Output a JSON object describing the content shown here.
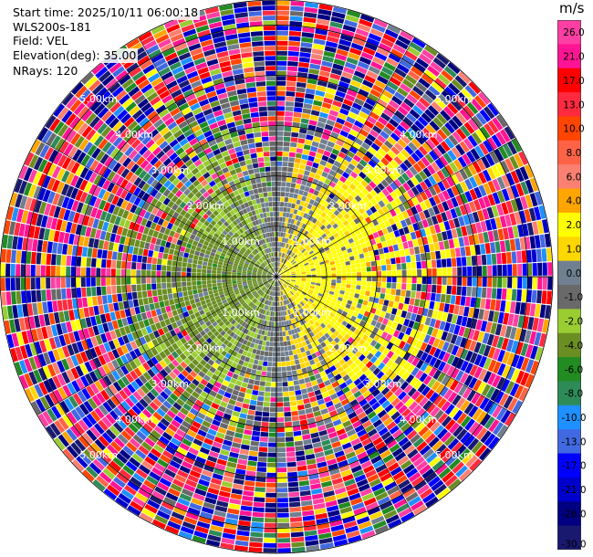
{
  "header": {
    "start_time": "Start time: 2025/10/11 06:00:18",
    "instrument": "WLS200s-181",
    "field": "Field: VEL",
    "elevation": "Elevation(deg): 35.00",
    "nrays": "NRays: 120"
  },
  "chart_data": {
    "type": "heatmap",
    "projection": "polar-ppi",
    "field": "VEL",
    "units": "m/s",
    "elevation_deg": 35.0,
    "n_rays": 120,
    "range_ring_labels": [
      "1.00km",
      "2.00km",
      "3.00km",
      "4.00km",
      "5.00km"
    ],
    "range_ring_label_km": [
      1,
      2,
      3,
      4,
      5
    ],
    "max_range_km": 5.5,
    "pattern": {
      "near_field_positive_sector": "east (yellow, ~2–6 m/s)",
      "near_field_negative_sector": "west (light green, ~-1 to -4 m/s)",
      "outer_ranges": "noisy, full color range"
    },
    "colorbar": {
      "min": -30.0,
      "max": 30.0,
      "tick_labels": [
        "26.0",
        "21.0",
        "17.0",
        "13.0",
        "10.0",
        "8.0",
        "6.0",
        "4.0",
        "2.0",
        "1.0",
        "0.0",
        "-1.0",
        "-2.0",
        "-4.0",
        "-6.0",
        "-8.0",
        "-10.0",
        "-13.0",
        "-17.0",
        "-21.0",
        "-26.0",
        "-30.0"
      ],
      "bins": [
        {
          "from": 26,
          "to": 30,
          "color": "#ff3fa3"
        },
        {
          "from": 21,
          "to": 26,
          "color": "#ff1493"
        },
        {
          "from": 17,
          "to": 21,
          "color": "#ff0000"
        },
        {
          "from": 13,
          "to": 17,
          "color": "#ff2a3f"
        },
        {
          "from": 10,
          "to": 13,
          "color": "#ff4500"
        },
        {
          "from": 8,
          "to": 10,
          "color": "#ff6347"
        },
        {
          "from": 6,
          "to": 8,
          "color": "#fa8072"
        },
        {
          "from": 4,
          "to": 6,
          "color": "#ffa500"
        },
        {
          "from": 2,
          "to": 4,
          "color": "#ffff00"
        },
        {
          "from": 1,
          "to": 2,
          "color": "#ffd700"
        },
        {
          "from": 0,
          "to": 1,
          "color": "#708090"
        },
        {
          "from": -1,
          "to": 0,
          "color": "#696969"
        },
        {
          "from": -2,
          "to": -1,
          "color": "#9acd32"
        },
        {
          "from": -4,
          "to": -2,
          "color": "#6b8e23"
        },
        {
          "from": -6,
          "to": -4,
          "color": "#228b22"
        },
        {
          "from": -8,
          "to": -6,
          "color": "#2e8b57"
        },
        {
          "from": -10,
          "to": -8,
          "color": "#1e90ff"
        },
        {
          "from": -13,
          "to": -10,
          "color": "#4169e1"
        },
        {
          "from": -17,
          "to": -13,
          "color": "#0000ff"
        },
        {
          "from": -21,
          "to": -17,
          "color": "#0000cd"
        },
        {
          "from": -26,
          "to": -21,
          "color": "#000080"
        },
        {
          "from": -30,
          "to": -26,
          "color": "#191970"
        }
      ]
    }
  }
}
